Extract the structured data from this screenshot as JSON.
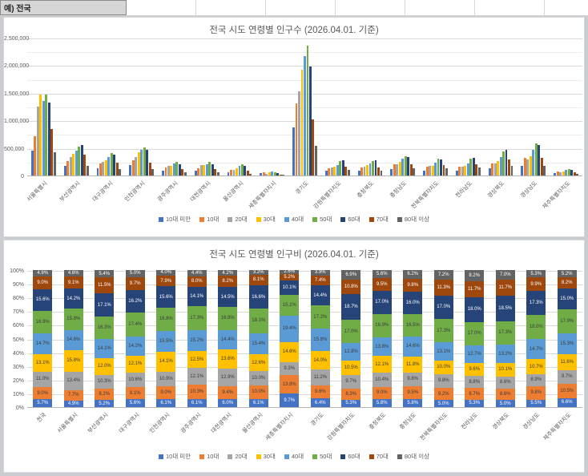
{
  "sheet": {
    "cell_a1": "예) 전국"
  },
  "legend_series_order": [
    "10대 미만",
    "10대",
    "20대",
    "30대",
    "40대",
    "50대",
    "60대",
    "70대",
    "80대 이상"
  ],
  "chart_data": [
    {
      "type": "bar",
      "title": "전국 시도 연령별 인구수 (2026.04.01. 기준)",
      "legend_position": "bottom",
      "grid": true,
      "ylim": [
        0,
        2500000
      ],
      "ytick_interval": 500000,
      "ytick_labels": [
        "0",
        "500,000",
        "1,000,000",
        "1,500,000",
        "2,000,000",
        "2,500,000"
      ],
      "categories": [
        "서울특별시",
        "부산광역시",
        "대구광역시",
        "인천광역시",
        "광주광역시",
        "대전광역시",
        "울산광역시",
        "세종특별자치시",
        "경기도",
        "강원특별자치도",
        "충청북도",
        "충청남도",
        "전북특별자치도",
        "전라남도",
        "경상북도",
        "경상남도",
        "제주특별자치도"
      ],
      "series": [
        {
          "name": "10대 미만",
          "color": "#4472C4",
          "values": [
            456000,
            169000,
            132000,
            185000,
            85000,
            86000,
            66000,
            38000,
            877000,
            81000,
            92000,
            124000,
            87000,
            94000,
            127000,
            177000,
            44000
          ]
        },
        {
          "name": "10대",
          "color": "#ED7D31",
          "values": [
            716000,
            267000,
            214000,
            273000,
            144000,
            135000,
            109000,
            54000,
            1315000,
            126000,
            143000,
            203000,
            159000,
            155000,
            218000,
            316000,
            70000
          ]
        },
        {
          "name": "20대",
          "color": "#A5A5A5",
          "values": [
            1246000,
            335000,
            249000,
            330000,
            169000,
            186000,
            109000,
            36000,
            1534000,
            147000,
            165000,
            210000,
            170000,
            157000,
            218000,
            287000,
            65000
          ]
        },
        {
          "name": "30대",
          "color": "#FFC000",
          "values": [
            1469000,
            390000,
            284000,
            427000,
            175000,
            196000,
            137000,
            57000,
            1918000,
            160000,
            192000,
            253000,
            173000,
            171000,
            257000,
            345000,
            78000
          ]
        },
        {
          "name": "40대",
          "color": "#5B9BD5",
          "values": [
            1358000,
            458000,
            334000,
            470000,
            213000,
            207000,
            168000,
            76000,
            2165000,
            195000,
            219000,
            312000,
            227000,
            226000,
            335000,
            473000,
            103000
          ]
        },
        {
          "name": "50대",
          "color": "#70AD47",
          "values": [
            1469000,
            530000,
            409000,
            509000,
            242000,
            242000,
            197000,
            59000,
            2356000,
            258000,
            269000,
            353000,
            299000,
            303000,
            439000,
            580000,
            120000
          ]
        },
        {
          "name": "60대",
          "color": "#264478",
          "values": [
            1321000,
            556000,
            381000,
            473000,
            197000,
            209000,
            181000,
            39000,
            1973000,
            284000,
            270000,
            342000,
            294000,
            320000,
            470000,
            557000,
            101000
          ]
        },
        {
          "name": "70대",
          "color": "#9E480E",
          "values": [
            846000,
            374000,
            228000,
            239000,
            112000,
            118000,
            88000,
            20000,
            1014000,
            164000,
            151000,
            210000,
            195000,
            208000,
            297000,
            319000,
            55000
          ]
        },
        {
          "name": "80대 이상",
          "color": "#636363",
          "values": [
            428000,
            176000,
            118000,
            121000,
            62000,
            60000,
            35000,
            10000,
            534000,
            105000,
            89000,
            133000,
            125000,
            146000,
            178000,
            171000,
            35000
          ]
        }
      ]
    },
    {
      "type": "bar",
      "subtype": "stacked-100",
      "title": "전국 시도 연령별 인구비 (2026.04.01. 기준)",
      "legend_position": "bottom",
      "grid": true,
      "ylim": [
        0,
        100
      ],
      "ytick_interval": 10,
      "ytick_labels": [
        "0%",
        "10%",
        "20%",
        "30%",
        "40%",
        "50%",
        "60%",
        "70%",
        "80%",
        "90%",
        "100%"
      ],
      "categories": [
        "전국",
        "서울특별시",
        "부산광역시",
        "대구광역시",
        "인천광역시",
        "광주광역시",
        "대전광역시",
        "울산광역시",
        "세종특별자치시",
        "경기도",
        "강원특별자치도",
        "충청북도",
        "충청남도",
        "전북특별자치도",
        "전라남도",
        "경상북도",
        "경상남도",
        "제주특별자치도"
      ],
      "series": [
        {
          "name": "10대 미만",
          "color": "#4472C4",
          "label_color": "#ffffff",
          "values": [
            5.7,
            4.9,
            5.2,
            5.6,
            6.1,
            6.1,
            6.0,
            6.1,
            9.7,
            6.4,
            5.3,
            5.8,
            5.8,
            5.0,
            5.3,
            5.0,
            5.5,
            6.6
          ]
        },
        {
          "name": "10대",
          "color": "#ED7D31",
          "label_color": "#3b3b3b",
          "values": [
            9.0,
            7.7,
            8.2,
            9.1,
            9.0,
            10.3,
            9.4,
            10.0,
            13.8,
            9.6,
            8.3,
            9.0,
            9.5,
            9.2,
            8.7,
            8.6,
            9.8,
            10.5
          ]
        },
        {
          "name": "20대",
          "color": "#A5A5A5",
          "label_color": "#3b3b3b",
          "values": [
            11.0,
            13.4,
            10.3,
            10.6,
            10.9,
            12.1,
            12.9,
            10.0,
            9.3,
            11.2,
            9.7,
            10.4,
            9.8,
            9.8,
            8.8,
            8.6,
            8.9,
            9.7
          ]
        },
        {
          "name": "30대",
          "color": "#FFC000",
          "label_color": "#3b3b3b",
          "values": [
            13.1,
            15.8,
            12.0,
            12.1,
            14.1,
            12.5,
            13.6,
            12.6,
            14.6,
            14.0,
            10.5,
            12.1,
            11.8,
            10.0,
            9.6,
            10.1,
            10.7,
            11.6
          ]
        },
        {
          "name": "40대",
          "color": "#5B9BD5",
          "label_color": "#3b3b3b",
          "values": [
            14.7,
            14.6,
            14.1,
            14.2,
            15.5,
            15.2,
            14.4,
            15.4,
            19.4,
            15.8,
            12.8,
            13.8,
            14.6,
            13.1,
            12.7,
            13.2,
            14.7,
            15.3
          ]
        },
        {
          "name": "50대",
          "color": "#70AD47",
          "label_color": "#3b3b3b",
          "values": [
            16.9,
            15.8,
            16.3,
            17.4,
            16.8,
            17.3,
            16.8,
            18.1,
            15.1,
            17.2,
            17.0,
            16.9,
            16.5,
            17.3,
            17.0,
            17.3,
            18.0,
            17.9
          ]
        },
        {
          "name": "60대",
          "color": "#264478",
          "label_color": "#ffffff",
          "values": [
            15.6,
            14.2,
            17.1,
            16.2,
            15.6,
            14.1,
            14.5,
            16.6,
            10.1,
            14.4,
            18.7,
            17.0,
            16.0,
            17.0,
            18.0,
            18.5,
            17.3,
            15.0
          ]
        },
        {
          "name": "70대",
          "color": "#9E480E",
          "label_color": "#ffffff",
          "values": [
            9.0,
            9.1,
            11.5,
            9.7,
            7.9,
            8.0,
            8.2,
            8.1,
            5.2,
            7.4,
            10.8,
            9.5,
            9.8,
            11.3,
            11.7,
            11.7,
            9.9,
            8.2
          ]
        },
        {
          "name": "80대 이상",
          "color": "#636363",
          "label_color": "#ffffff",
          "values": [
            4.9,
            4.6,
            5.4,
            5.0,
            4.0,
            4.4,
            4.2,
            3.2,
            2.6,
            3.9,
            6.9,
            5.6,
            6.2,
            7.2,
            8.2,
            7.0,
            5.3,
            5.2
          ]
        }
      ]
    }
  ]
}
